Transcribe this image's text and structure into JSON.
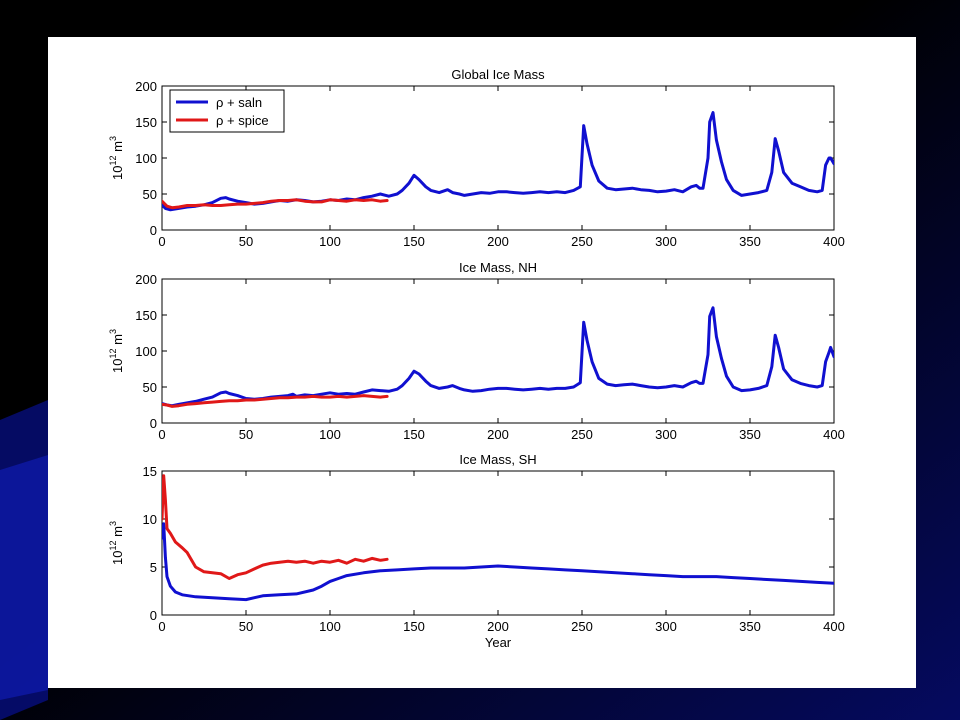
{
  "colors": {
    "saln": "#1010d0",
    "spice": "#e01818",
    "slide_background": "#000000",
    "slide_accent": "#0a14b4",
    "figure_background": "#ffffff"
  },
  "chart_data": [
    {
      "type": "line",
      "title": "Global Ice Mass",
      "xlabel": "",
      "ylabel": "10^12 m^3",
      "ylabel_parts": {
        "base": "10",
        "exp": "12",
        "unit": "m",
        "unit_exp": "3"
      },
      "xlim": [
        0,
        400
      ],
      "ylim": [
        0,
        200
      ],
      "xticks": [
        "0",
        "50",
        "100",
        "150",
        "200",
        "250",
        "300",
        "350",
        "400"
      ],
      "yticks": [
        "0",
        "50",
        "100",
        "150",
        "200"
      ],
      "grid": false,
      "legend": {
        "placement": "top-left",
        "entries": [
          "ρ + saln",
          "ρ + spice"
        ]
      },
      "series": [
        {
          "name": "ρ + saln",
          "color": "#1010d0",
          "x": [
            0,
            2,
            5,
            10,
            15,
            20,
            25,
            30,
            35,
            38,
            40,
            45,
            50,
            55,
            60,
            65,
            70,
            75,
            80,
            85,
            90,
            95,
            100,
            105,
            110,
            115,
            120,
            125,
            130,
            135,
            140,
            143,
            147,
            150,
            153,
            157,
            160,
            165,
            170,
            173,
            177,
            180,
            185,
            190,
            195,
            200,
            205,
            210,
            215,
            220,
            225,
            230,
            235,
            240,
            245,
            249,
            251,
            253,
            256,
            260,
            265,
            270,
            275,
            280,
            285,
            290,
            295,
            300,
            305,
            310,
            315,
            318,
            320,
            322,
            325,
            326,
            328,
            330,
            333,
            336,
            340,
            345,
            350,
            355,
            360,
            363,
            365,
            367,
            370,
            375,
            380,
            385,
            390,
            393,
            395,
            397,
            398,
            400
          ],
          "y": [
            35,
            30,
            28,
            30,
            32,
            33,
            35,
            38,
            44,
            45,
            43,
            40,
            38,
            36,
            37,
            39,
            41,
            40,
            42,
            41,
            39,
            40,
            42,
            41,
            43,
            42,
            45,
            47,
            50,
            47,
            50,
            55,
            65,
            76,
            70,
            60,
            55,
            52,
            56,
            52,
            50,
            48,
            50,
            52,
            51,
            53,
            53,
            52,
            51,
            52,
            53,
            52,
            53,
            52,
            55,
            60,
            145,
            120,
            90,
            68,
            58,
            56,
            57,
            58,
            56,
            55,
            53,
            54,
            56,
            53,
            60,
            62,
            58,
            58,
            100,
            150,
            163,
            125,
            95,
            70,
            55,
            48,
            50,
            52,
            55,
            80,
            127,
            110,
            80,
            65,
            60,
            55,
            53,
            55,
            90,
            100,
            100,
            92
          ]
        },
        {
          "name": "ρ + spice",
          "color": "#e01818",
          "x": [
            0,
            3,
            6,
            10,
            15,
            20,
            25,
            30,
            35,
            40,
            45,
            50,
            55,
            60,
            65,
            70,
            75,
            80,
            85,
            90,
            95,
            100,
            105,
            110,
            115,
            120,
            125,
            130,
            134
          ],
          "y": [
            40,
            33,
            31,
            32,
            34,
            34,
            35,
            34,
            34,
            35,
            36,
            36,
            37,
            38,
            40,
            41,
            41,
            42,
            40,
            39,
            39,
            42,
            41,
            40,
            42,
            41,
            42,
            40,
            41
          ]
        }
      ]
    },
    {
      "type": "line",
      "title": "Ice Mass, NH",
      "xlabel": "",
      "ylabel": "10^12 m^3",
      "ylabel_parts": {
        "base": "10",
        "exp": "12",
        "unit": "m",
        "unit_exp": "3"
      },
      "xlim": [
        0,
        400
      ],
      "ylim": [
        0,
        200
      ],
      "xticks": [
        "0",
        "50",
        "100",
        "150",
        "200",
        "250",
        "300",
        "350",
        "400"
      ],
      "yticks": [
        "0",
        "50",
        "100",
        "150",
        "200"
      ],
      "grid": false,
      "series": [
        {
          "color": "#1010d0",
          "x": [
            0,
            3,
            6,
            10,
            15,
            20,
            25,
            30,
            35,
            38,
            40,
            45,
            50,
            55,
            60,
            65,
            70,
            75,
            78,
            80,
            85,
            90,
            95,
            100,
            105,
            110,
            115,
            120,
            125,
            130,
            135,
            140,
            143,
            147,
            150,
            153,
            157,
            160,
            165,
            170,
            173,
            177,
            180,
            185,
            190,
            195,
            200,
            205,
            210,
            215,
            220,
            225,
            230,
            235,
            240,
            245,
            249,
            251,
            253,
            256,
            260,
            265,
            270,
            275,
            280,
            285,
            290,
            295,
            300,
            305,
            310,
            315,
            318,
            320,
            322,
            325,
            326,
            328,
            330,
            333,
            336,
            340,
            345,
            350,
            355,
            360,
            363,
            365,
            367,
            370,
            375,
            380,
            385,
            390,
            393,
            395,
            397,
            398,
            400
          ],
          "y": [
            27,
            25,
            24,
            26,
            28,
            30,
            33,
            36,
            42,
            43,
            41,
            38,
            34,
            33,
            34,
            36,
            37,
            38,
            40,
            37,
            39,
            38,
            40,
            42,
            40,
            41,
            40,
            43,
            46,
            45,
            44,
            47,
            52,
            62,
            72,
            68,
            58,
            52,
            48,
            50,
            52,
            48,
            46,
            44,
            45,
            47,
            48,
            48,
            47,
            46,
            47,
            48,
            47,
            48,
            48,
            50,
            56,
            140,
            115,
            85,
            62,
            54,
            52,
            53,
            54,
            52,
            50,
            49,
            50,
            52,
            50,
            56,
            58,
            55,
            55,
            95,
            148,
            160,
            120,
            90,
            65,
            50,
            45,
            46,
            48,
            52,
            78,
            122,
            105,
            75,
            60,
            55,
            52,
            50,
            52,
            85,
            98,
            105,
            92
          ]
        },
        {
          "color": "#e01818",
          "x": [
            0,
            3,
            6,
            10,
            15,
            20,
            25,
            30,
            35,
            40,
            45,
            50,
            55,
            60,
            65,
            70,
            75,
            80,
            85,
            90,
            95,
            100,
            105,
            110,
            115,
            120,
            125,
            130,
            134
          ],
          "y": [
            26,
            25,
            23,
            24,
            26,
            27,
            28,
            29,
            30,
            31,
            31,
            32,
            32,
            33,
            34,
            35,
            35,
            36,
            36,
            37,
            36,
            36,
            37,
            36,
            37,
            38,
            37,
            36,
            37
          ]
        }
      ]
    },
    {
      "type": "line",
      "title": "Ice Mass, SH",
      "xlabel": "Year",
      "ylabel": "10^12 m^3",
      "ylabel_parts": {
        "base": "10",
        "exp": "12",
        "unit": "m",
        "unit_exp": "3"
      },
      "xlim": [
        0,
        400
      ],
      "ylim": [
        0,
        15
      ],
      "xticks": [
        "0",
        "50",
        "100",
        "150",
        "200",
        "250",
        "300",
        "350",
        "400"
      ],
      "yticks": [
        "0",
        "5",
        "10",
        "15"
      ],
      "grid": false,
      "series": [
        {
          "color": "#1010d0",
          "x": [
            0,
            1,
            2,
            3,
            5,
            8,
            12,
            20,
            30,
            40,
            50,
            55,
            60,
            70,
            80,
            90,
            95,
            100,
            105,
            110,
            120,
            130,
            140,
            150,
            160,
            170,
            180,
            190,
            200,
            210,
            220,
            230,
            240,
            250,
            260,
            270,
            280,
            290,
            300,
            310,
            320,
            330,
            340,
            350,
            360,
            370,
            380,
            390,
            400
          ],
          "y": [
            8,
            9.5,
            6,
            4,
            3,
            2.4,
            2.1,
            1.9,
            1.8,
            1.7,
            1.6,
            1.8,
            2.0,
            2.1,
            2.2,
            2.6,
            3.0,
            3.5,
            3.8,
            4.1,
            4.4,
            4.6,
            4.7,
            4.8,
            4.9,
            4.9,
            4.9,
            5.0,
            5.1,
            5.0,
            4.9,
            4.8,
            4.7,
            4.6,
            4.5,
            4.4,
            4.3,
            4.2,
            4.1,
            4.0,
            4.0,
            4.0,
            3.9,
            3.8,
            3.7,
            3.6,
            3.5,
            3.4,
            3.3
          ]
        },
        {
          "color": "#e01818",
          "x": [
            0,
            1,
            2,
            3,
            5,
            8,
            12,
            15,
            20,
            25,
            30,
            35,
            40,
            45,
            50,
            55,
            60,
            65,
            70,
            75,
            80,
            85,
            90,
            95,
            100,
            105,
            110,
            115,
            120,
            125,
            130,
            134
          ],
          "y": [
            10,
            14.5,
            12,
            9,
            8.5,
            7.6,
            7.0,
            6.5,
            5.0,
            4.5,
            4.4,
            4.3,
            3.8,
            4.2,
            4.4,
            4.8,
            5.2,
            5.4,
            5.5,
            5.6,
            5.5,
            5.6,
            5.4,
            5.6,
            5.5,
            5.7,
            5.4,
            5.8,
            5.6,
            5.9,
            5.7,
            5.8
          ]
        }
      ]
    }
  ]
}
